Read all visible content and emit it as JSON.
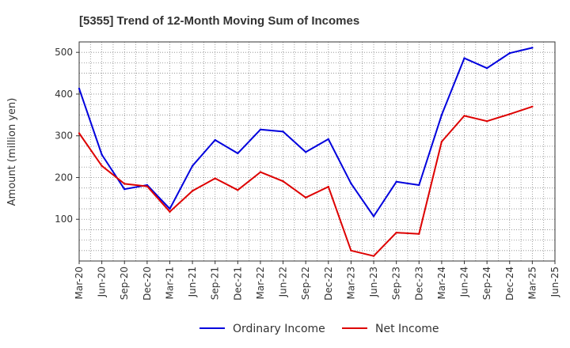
{
  "chart_data": {
    "type": "line",
    "title": "[5355]  Trend of 12-Month Moving Sum of Incomes",
    "xlabel": "",
    "ylabel": "Amount (million yen)",
    "ylim": [
      0,
      525
    ],
    "yticks": [
      100,
      200,
      300,
      400,
      500
    ],
    "categories": [
      "Mar-20",
      "Jun-20",
      "Sep-20",
      "Dec-20",
      "Mar-21",
      "Jun-21",
      "Sep-21",
      "Dec-21",
      "Mar-22",
      "Jun-22",
      "Sep-22",
      "Dec-22",
      "Mar-23",
      "Jun-23",
      "Sep-23",
      "Dec-23",
      "Mar-24",
      "Jun-24",
      "Sep-24",
      "Dec-24",
      "Mar-25",
      "Jun-25"
    ],
    "series": [
      {
        "name": "Ordinary Income",
        "color": "#0000dd",
        "values": [
          413,
          255,
          172,
          182,
          125,
          228,
          290,
          258,
          315,
          310,
          261,
          292,
          186,
          107,
          190,
          182,
          350,
          486,
          462,
          498,
          511,
          null
        ]
      },
      {
        "name": "Net Income",
        "color": "#dd0000",
        "values": [
          306,
          228,
          185,
          179,
          118,
          168,
          198,
          170,
          213,
          191,
          152,
          178,
          25,
          12,
          68,
          65,
          286,
          348,
          335,
          352,
          370,
          null
        ]
      }
    ],
    "legend_position": "bottom-center",
    "grid": true
  }
}
